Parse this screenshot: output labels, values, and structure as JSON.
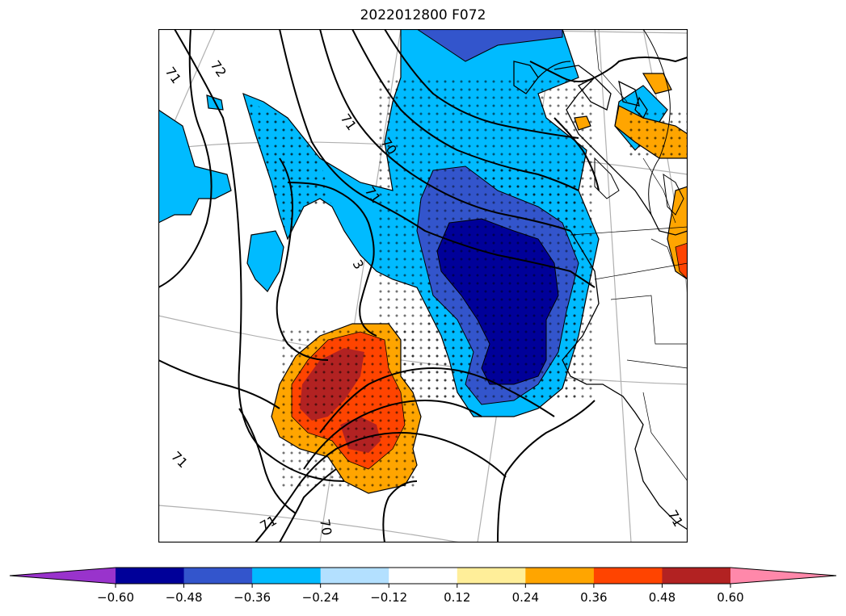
{
  "title": "2022012800 F072",
  "colorbar": {
    "ticks": [
      "−0.60",
      "−0.48",
      "−0.36",
      "−0.24",
      "−0.12",
      "0.12",
      "0.24",
      "0.36",
      "0.48",
      "0.60"
    ],
    "colors": [
      "#9933cc",
      "#000099",
      "#3355cc",
      "#00bbff",
      "#b3e0ff",
      "#ffffff",
      "#ffee99",
      "#ffa500",
      "#ff4400",
      "#b22222",
      "#ff88aa"
    ]
  },
  "contour_labels": [
    "71",
    "72",
    "71",
    "70",
    "71",
    "71",
    "70",
    "71",
    "3"
  ],
  "palette": {
    "light_blue": "#00bbff",
    "mid_blue": "#3355cc",
    "dark_blue": "#000099",
    "orange": "#ffa500",
    "red_orange": "#ff4400",
    "dark_red": "#b22222"
  }
}
